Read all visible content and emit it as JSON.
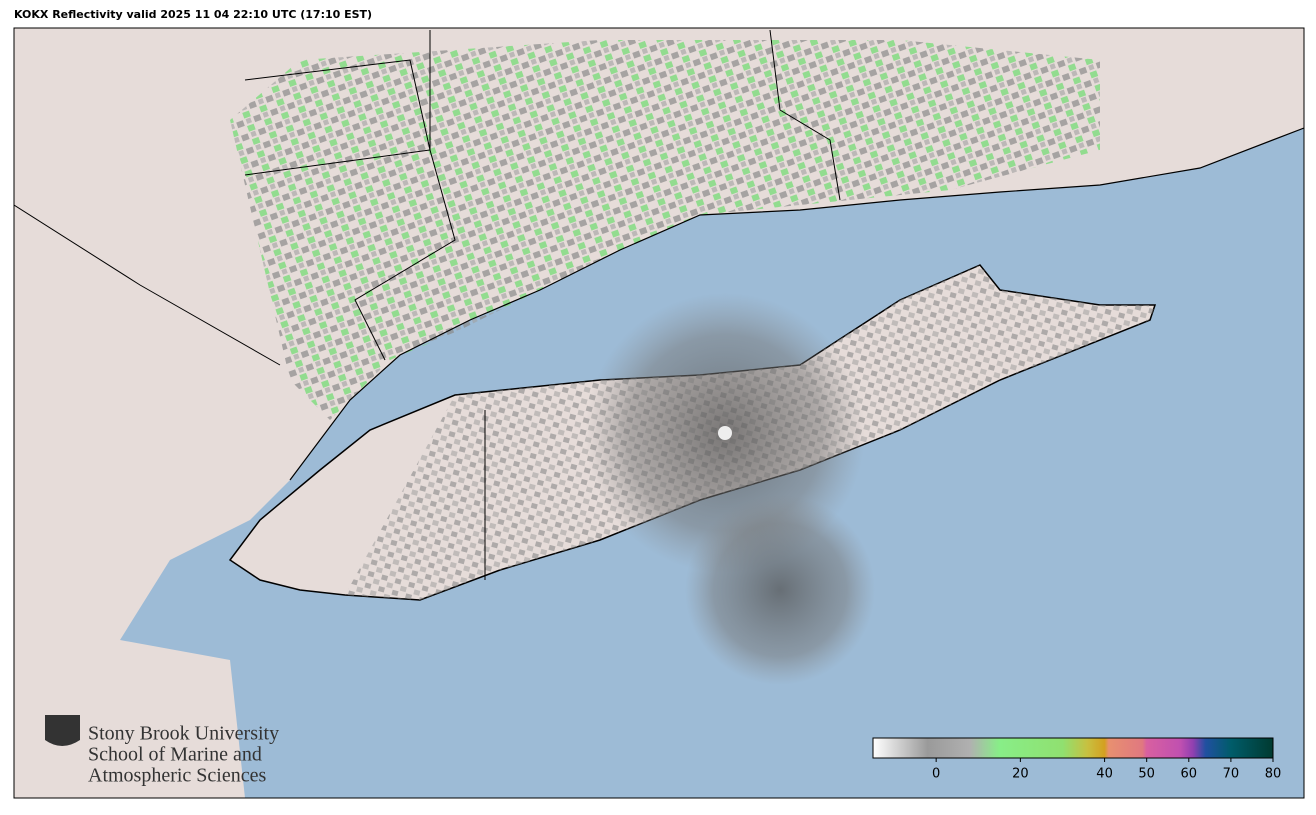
{
  "title": "KOKX Reflectivity valid 2025 11 04 22:10 UTC (17:10 EST)",
  "logo": {
    "line1": "Stony Brook University",
    "line2": "School of Marine and",
    "line3": "Atmospheric Sciences"
  },
  "colorbar": {
    "lim": [
      -15,
      80
    ],
    "ticks": [
      0,
      20,
      40,
      50,
      60,
      70,
      80
    ],
    "stops": [
      {
        "value": -15,
        "color": "#ffffff"
      },
      {
        "value": -2,
        "color": "#9a9a9a"
      },
      {
        "value": 8,
        "color": "#b0b0b0"
      },
      {
        "value": 15,
        "color": "#88ee88"
      },
      {
        "value": 30,
        "color": "#90e070"
      },
      {
        "value": 36,
        "color": "#c8c040"
      },
      {
        "value": 40,
        "color": "#d4a020"
      },
      {
        "value": 41,
        "color": "#e89070"
      },
      {
        "value": 49,
        "color": "#e07880"
      },
      {
        "value": 50,
        "color": "#d860a0"
      },
      {
        "value": 58,
        "color": "#c050b0"
      },
      {
        "value": 61,
        "color": "#9040b0"
      },
      {
        "value": 64,
        "color": "#2050a0"
      },
      {
        "value": 70,
        "color": "#005c6a"
      },
      {
        "value": 80,
        "color": "#003a30"
      }
    ]
  }
}
